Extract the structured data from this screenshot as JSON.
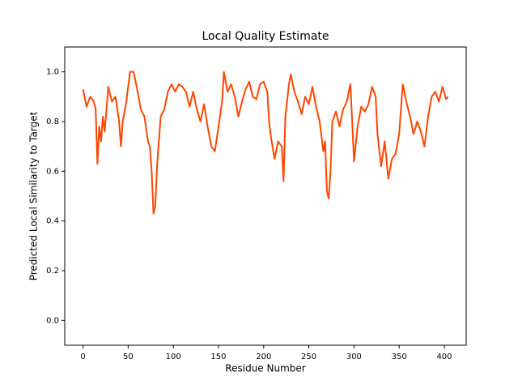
{
  "chart_data": {
    "type": "line",
    "title": "Local Quality Estimate",
    "x_label": "Residue Number",
    "y_label": "Predicted Local Similarity to Target",
    "xlim": [
      -20.2,
      424.2
    ],
    "ylim": [
      -0.1,
      1.1
    ],
    "xticks": [
      0,
      50,
      100,
      150,
      200,
      250,
      300,
      350,
      400
    ],
    "yticks": [
      {
        "value": 0,
        "label": "0.0"
      },
      0.2,
      0.4,
      0.6,
      0.8,
      {
        "value": 1,
        "label": "1.0"
      }
    ],
    "grid": false,
    "series": [
      {
        "color": "#ff4500",
        "x": [
          0,
          4,
          8,
          12,
          14,
          16,
          18,
          20,
          22,
          24,
          28,
          32,
          36,
          40,
          42,
          44,
          48,
          52,
          56,
          60,
          64,
          68,
          72,
          74,
          76,
          78,
          80,
          82,
          86,
          90,
          94,
          98,
          102,
          106,
          110,
          114,
          118,
          122,
          126,
          130,
          134,
          138,
          142,
          146,
          150,
          154,
          156,
          160,
          164,
          168,
          172,
          176,
          180,
          184,
          188,
          192,
          196,
          200,
          204,
          206,
          208,
          212,
          216,
          220,
          222,
          224,
          228,
          230,
          234,
          238,
          242,
          246,
          250,
          254,
          258,
          262,
          266,
          268,
          270,
          272,
          274,
          276,
          280,
          284,
          288,
          292,
          296,
          298,
          300,
          304,
          308,
          312,
          316,
          320,
          324,
          326,
          330,
          334,
          338,
          342,
          346,
          350,
          354,
          358,
          362,
          366,
          370,
          374,
          378,
          382,
          386,
          390,
          394,
          398,
          402,
          404
        ],
        "values": [
          0.93,
          0.86,
          0.9,
          0.88,
          0.85,
          0.63,
          0.78,
          0.72,
          0.82,
          0.76,
          0.94,
          0.88,
          0.9,
          0.8,
          0.7,
          0.8,
          0.88,
          1.0,
          1.0,
          0.93,
          0.85,
          0.82,
          0.72,
          0.7,
          0.6,
          0.43,
          0.46,
          0.62,
          0.82,
          0.85,
          0.92,
          0.95,
          0.92,
          0.95,
          0.94,
          0.92,
          0.86,
          0.92,
          0.85,
          0.8,
          0.87,
          0.78,
          0.7,
          0.68,
          0.78,
          0.88,
          1.0,
          0.92,
          0.95,
          0.9,
          0.82,
          0.88,
          0.93,
          0.96,
          0.9,
          0.89,
          0.95,
          0.96,
          0.92,
          0.8,
          0.74,
          0.65,
          0.72,
          0.7,
          0.56,
          0.82,
          0.95,
          0.99,
          0.92,
          0.88,
          0.83,
          0.9,
          0.87,
          0.94,
          0.86,
          0.8,
          0.68,
          0.72,
          0.52,
          0.49,
          0.6,
          0.8,
          0.84,
          0.78,
          0.85,
          0.88,
          0.95,
          0.8,
          0.64,
          0.78,
          0.86,
          0.84,
          0.87,
          0.94,
          0.9,
          0.75,
          0.62,
          0.72,
          0.57,
          0.65,
          0.67,
          0.75,
          0.95,
          0.88,
          0.82,
          0.75,
          0.8,
          0.76,
          0.7,
          0.82,
          0.9,
          0.92,
          0.88,
          0.94,
          0.89,
          0.9
        ]
      }
    ]
  }
}
